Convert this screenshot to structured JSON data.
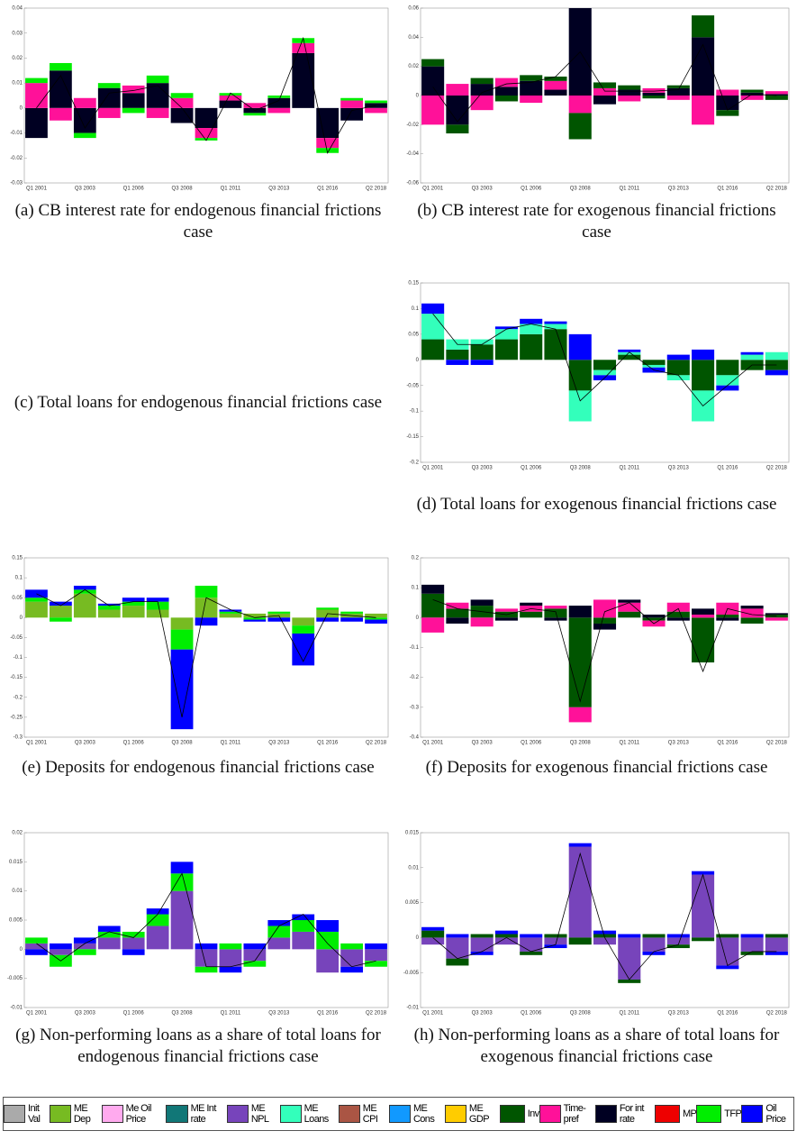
{
  "legend": [
    {
      "name": "Init Val",
      "color": "#aaaaaa"
    },
    {
      "name": "ME Dep",
      "color": "#77bb22"
    },
    {
      "name": "Me Oil Price",
      "color": "#ffaaee"
    },
    {
      "name": "ME Int rate",
      "color": "#117777"
    },
    {
      "name": "ME NPL",
      "color": "#7744bb"
    },
    {
      "name": "ME Loans",
      "color": "#33ffbb"
    },
    {
      "name": "ME CPI",
      "color": "#aa5544"
    },
    {
      "name": "ME Cons",
      "color": "#1199ff"
    },
    {
      "name": "ME GDP",
      "color": "#ffcc00"
    },
    {
      "name": "Inv",
      "color": "#005500"
    },
    {
      "name": "Time-pref",
      "color": "#ff1199"
    },
    {
      "name": "For int rate",
      "color": "#000022"
    },
    {
      "name": "MP",
      "color": "#ee0000"
    },
    {
      "name": "TFP",
      "color": "#00ee00"
    },
    {
      "name": "Oil Price",
      "color": "#0000ff"
    }
  ],
  "chart_data": [
    {
      "type": "bar",
      "caption": "(a) CB interest rate for endogenous financial frictions case",
      "categories": [
        "Q1 2001",
        null,
        "Q3 2003",
        null,
        "Q1 2006",
        null,
        "Q3 2008",
        null,
        "Q1 2011",
        null,
        "Q3 2013",
        null,
        "Q1 2016",
        null,
        "Q2 2018"
      ],
      "ylim": [
        -0.03,
        0.04
      ],
      "yticks": [
        -0.03,
        -0.02,
        -0.01,
        0,
        0.01,
        0.02,
        0.03,
        0.04
      ],
      "series": [
        {
          "name": "For int rate",
          "color": "#000022",
          "values": [
            -0.012,
            0.015,
            -0.01,
            0.008,
            0.006,
            0.01,
            -0.006,
            -0.008,
            0.003,
            -0.002,
            0.004,
            0.022,
            -0.012,
            -0.005,
            0.002
          ]
        },
        {
          "name": "Time-pref",
          "color": "#ff1199",
          "values": [
            0.01,
            -0.005,
            0.004,
            -0.004,
            0.003,
            -0.004,
            0.004,
            -0.004,
            0.002,
            0.002,
            -0.002,
            0.004,
            -0.004,
            0.003,
            -0.002
          ]
        },
        {
          "name": "TFP",
          "color": "#00ee00",
          "values": [
            0.002,
            0.003,
            -0.002,
            0.002,
            -0.002,
            0.003,
            0.002,
            -0.001,
            0.001,
            -0.001,
            0.001,
            0.002,
            -0.002,
            0.001,
            0.001
          ]
        }
      ],
      "total": [
        0,
        0.013,
        -0.008,
        0.006,
        0.007,
        0.009,
        0,
        -0.013,
        0.006,
        -0.001,
        0.003,
        0.028,
        -0.018,
        -0.001,
        0.001
      ]
    },
    {
      "type": "bar",
      "caption": "(b) CB interest rate for exogenous financial frictions case",
      "categories": [
        "Q1 2001",
        null,
        "Q3 2003",
        null,
        "Q1 2006",
        null,
        "Q3 2008",
        null,
        "Q1 2011",
        null,
        "Q3 2013",
        null,
        "Q1 2016",
        null,
        "Q2 2018"
      ],
      "ylim": [
        -0.06,
        0.06
      ],
      "yticks": [
        -0.06,
        -0.04,
        -0.02,
        0,
        0.02,
        0.04,
        0.06
      ],
      "series": [
        {
          "name": "For int rate",
          "color": "#000022",
          "values": [
            0.02,
            -0.02,
            0.008,
            0.006,
            0.01,
            0.004,
            0.06,
            -0.006,
            0.004,
            0.002,
            0.005,
            0.04,
            -0.01,
            0.002,
            0.001
          ]
        },
        {
          "name": "Time-pref",
          "color": "#ff1199",
          "values": [
            -0.02,
            0.008,
            -0.01,
            0.006,
            -0.005,
            0.006,
            -0.012,
            0.005,
            -0.004,
            0.003,
            -0.003,
            -0.02,
            0.004,
            -0.003,
            0.002
          ]
        },
        {
          "name": "Inv",
          "color": "#005500",
          "values": [
            0.005,
            -0.006,
            0.004,
            -0.004,
            0.004,
            0.003,
            -0.018,
            0.004,
            0.003,
            -0.002,
            0.002,
            0.015,
            -0.004,
            0.002,
            -0.003
          ]
        }
      ],
      "total": [
        0.006,
        -0.018,
        0.002,
        0.008,
        0.009,
        0.013,
        0.03,
        0.003,
        0.003,
        0.003,
        0.004,
        0.035,
        -0.01,
        0.001,
        0
      ]
    },
    {
      "caption": "(c) Total loans for endogenous financial frictions case"
    },
    {
      "type": "bar",
      "caption": "(d) Total loans for exogenous financial frictions case",
      "categories": [
        "Q1 2001",
        null,
        "Q3 2003",
        null,
        "Q1 2006",
        null,
        "Q3 2008",
        null,
        "Q1 2011",
        null,
        "Q3 2013",
        null,
        "Q1 2016",
        null,
        "Q2 2018"
      ],
      "ylim": [
        -0.2,
        0.15
      ],
      "yticks": [
        -0.2,
        -0.15,
        -0.1,
        -0.05,
        0,
        0.05,
        0.1,
        0.15
      ],
      "series": [
        {
          "name": "Inv",
          "color": "#005500",
          "values": [
            0.04,
            0.02,
            0.03,
            0.04,
            0.05,
            0.06,
            -0.06,
            -0.02,
            0.01,
            -0.01,
            -0.03,
            -0.06,
            -0.03,
            -0.02,
            -0.02
          ]
        },
        {
          "name": "ME Loans",
          "color": "#33ffbb",
          "values": [
            0.05,
            0.02,
            0.01,
            0.02,
            0.02,
            0.01,
            -0.06,
            -0.01,
            0.005,
            -0.005,
            -0.01,
            -0.06,
            -0.02,
            0.01,
            0.015
          ]
        },
        {
          "name": "Oil Price",
          "color": "#0000ff",
          "values": [
            0.02,
            -0.01,
            -0.01,
            0.005,
            0.01,
            0.005,
            0.05,
            -0.01,
            0.005,
            -0.01,
            0.01,
            0.02,
            -0.01,
            0.005,
            -0.01
          ]
        }
      ],
      "total": [
        0.09,
        0.03,
        0.03,
        0.06,
        0.07,
        0.06,
        -0.08,
        -0.035,
        0.015,
        -0.02,
        -0.03,
        -0.09,
        -0.05,
        -0.01,
        -0.01
      ]
    },
    {
      "type": "bar",
      "caption": "(e) Deposits for endogenous financial frictions case",
      "categories": [
        "Q1 2001",
        null,
        "Q3 2003",
        null,
        "Q1 2006",
        null,
        "Q3 2008",
        null,
        "Q1 2011",
        null,
        "Q3 2013",
        null,
        "Q1 2016",
        null,
        "Q2 2018"
      ],
      "ylim": [
        -0.3,
        0.15
      ],
      "yticks": [
        -0.3,
        -0.25,
        -0.2,
        -0.15,
        -0.1,
        -0.05,
        0,
        0.05,
        0.1,
        0.15
      ],
      "series": [
        {
          "name": "ME Dep",
          "color": "#77bb22",
          "values": [
            0.04,
            0.03,
            0.06,
            0.02,
            0.03,
            0.02,
            -0.03,
            0.05,
            0.01,
            0.01,
            0.01,
            -0.02,
            0.02,
            0.01,
            0.01
          ]
        },
        {
          "name": "TFP",
          "color": "#00ee00",
          "values": [
            0.01,
            -0.01,
            0.01,
            0.01,
            0.01,
            0.02,
            -0.05,
            0.03,
            0.005,
            -0.005,
            0.005,
            -0.02,
            0.005,
            0.005,
            -0.005
          ]
        },
        {
          "name": "Oil Price",
          "color": "#0000ff",
          "values": [
            0.02,
            0.01,
            0.01,
            0.005,
            0.01,
            0.01,
            -0.2,
            -0.02,
            0.005,
            -0.005,
            -0.01,
            -0.08,
            -0.01,
            -0.01,
            -0.01
          ]
        }
      ],
      "total": [
        0.06,
        0.03,
        0.07,
        0.03,
        0.04,
        0.04,
        -0.25,
        0.05,
        0.02,
        0,
        0.005,
        -0.11,
        0.01,
        0.005,
        0
      ]
    },
    {
      "type": "bar",
      "caption": "(f) Deposits for exogenous financial frictions case",
      "categories": [
        "Q1 2001",
        null,
        "Q3 2003",
        null,
        "Q1 2006",
        null,
        "Q3 2008",
        null,
        "Q1 2011",
        null,
        "Q3 2013",
        null,
        "Q1 2016",
        null,
        "Q2 2018"
      ],
      "ylim": [
        -0.4,
        0.2
      ],
      "yticks": [
        -0.4,
        -0.3,
        -0.2,
        -0.1,
        0,
        0.1,
        0.2
      ],
      "series": [
        {
          "name": "Inv",
          "color": "#005500",
          "values": [
            0.08,
            0.03,
            0.04,
            0.02,
            0.02,
            0.03,
            -0.3,
            -0.02,
            0.02,
            -0.01,
            0.02,
            -0.15,
            0.01,
            -0.02,
            0.01
          ]
        },
        {
          "name": "Time-pref",
          "color": "#ff1199",
          "values": [
            -0.05,
            0.02,
            -0.03,
            0.01,
            0.02,
            0.01,
            -0.05,
            0.06,
            0.03,
            -0.02,
            0.03,
            0.01,
            0.04,
            0.03,
            -0.01
          ]
        },
        {
          "name": "For int rate",
          "color": "#000022",
          "values": [
            0.03,
            -0.02,
            0.02,
            -0.01,
            0.01,
            -0.01,
            0.04,
            -0.02,
            0.01,
            0.01,
            -0.01,
            0.02,
            -0.01,
            0.01,
            0.005
          ]
        }
      ],
      "total": [
        0.06,
        0.03,
        0.02,
        0.01,
        0.03,
        0.02,
        -0.28,
        0.02,
        0.05,
        -0.02,
        0.03,
        -0.18,
        0.03,
        0.01,
        0.005
      ]
    },
    {
      "type": "bar",
      "caption": "(g) Non-performing loans as a share of total loans for endogenous financial frictions case",
      "categories": [
        "Q1 2001",
        null,
        "Q3 2003",
        null,
        "Q1 2006",
        null,
        "Q3 2008",
        null,
        "Q1 2011",
        null,
        "Q3 2013",
        null,
        "Q1 2016",
        null,
        "Q2 2018"
      ],
      "ylim": [
        -0.01,
        0.02
      ],
      "yticks": [
        -0.01,
        -0.005,
        0,
        0.005,
        0.01,
        0.015,
        0.02
      ],
      "series": [
        {
          "name": "ME NPL",
          "color": "#7744bb",
          "values": [
            0.001,
            -0.001,
            0.001,
            0.002,
            0.002,
            0.004,
            0.01,
            -0.003,
            -0.003,
            -0.002,
            0.002,
            0.003,
            -0.004,
            -0.003,
            -0.002
          ]
        },
        {
          "name": "TFP",
          "color": "#00ee00",
          "values": [
            0.001,
            -0.002,
            -0.001,
            0.001,
            0.001,
            0.002,
            0.003,
            -0.001,
            0.001,
            -0.001,
            0.002,
            0.002,
            0.003,
            0.001,
            -0.001
          ]
        },
        {
          "name": "Oil Price",
          "color": "#0000ff",
          "values": [
            -0.001,
            0.001,
            0.001,
            0.001,
            -0.001,
            0.001,
            0.002,
            0.001,
            -0.001,
            0.001,
            0.001,
            0.001,
            0.002,
            -0.001,
            0.001
          ]
        }
      ],
      "total": [
        0.001,
        -0.002,
        0.001,
        0.003,
        0.002,
        0.006,
        0.013,
        -0.003,
        -0.003,
        -0.002,
        0.004,
        0.006,
        0.001,
        -0.003,
        -0.002
      ]
    },
    {
      "type": "bar",
      "caption": "(h) Non-performing loans as a share of total loans for exogenous financial frictions case",
      "categories": [
        "Q1 2001",
        null,
        "Q3 2003",
        null,
        "Q1 2006",
        null,
        "Q3 2008",
        null,
        "Q1 2011",
        null,
        "Q3 2013",
        null,
        "Q1 2016",
        null,
        "Q2 2018"
      ],
      "ylim": [
        -0.01,
        0.015
      ],
      "yticks": [
        -0.01,
        -0.005,
        0,
        0.005,
        0.01,
        0.015
      ],
      "series": [
        {
          "name": "ME NPL",
          "color": "#7744bb",
          "values": [
            -0.001,
            -0.003,
            -0.002,
            -0.001,
            -0.002,
            -0.001,
            0.013,
            -0.001,
            -0.006,
            -0.002,
            -0.001,
            0.009,
            -0.004,
            -0.002,
            -0.002
          ]
        },
        {
          "name": "Inv",
          "color": "#005500",
          "values": [
            0.001,
            -0.001,
            0.0005,
            0.0005,
            -0.0005,
            0.0005,
            -0.001,
            0.0005,
            -0.0005,
            0.0005,
            -0.0005,
            -0.0005,
            0.0005,
            -0.0005,
            0.0005
          ]
        },
        {
          "name": "Oil Price",
          "color": "#0000ff",
          "values": [
            0.0005,
            0.0005,
            -0.0005,
            0.0005,
            0.0005,
            -0.0005,
            0.0005,
            0.0005,
            0.0005,
            -0.0005,
            0.0005,
            0.0005,
            -0.0005,
            0.0005,
            -0.0005
          ]
        }
      ],
      "total": [
        0,
        -0.003,
        -0.002,
        0,
        -0.002,
        -0.001,
        0.012,
        0,
        -0.006,
        -0.002,
        -0.001,
        0.009,
        -0.004,
        -0.002,
        -0.002
      ]
    }
  ]
}
